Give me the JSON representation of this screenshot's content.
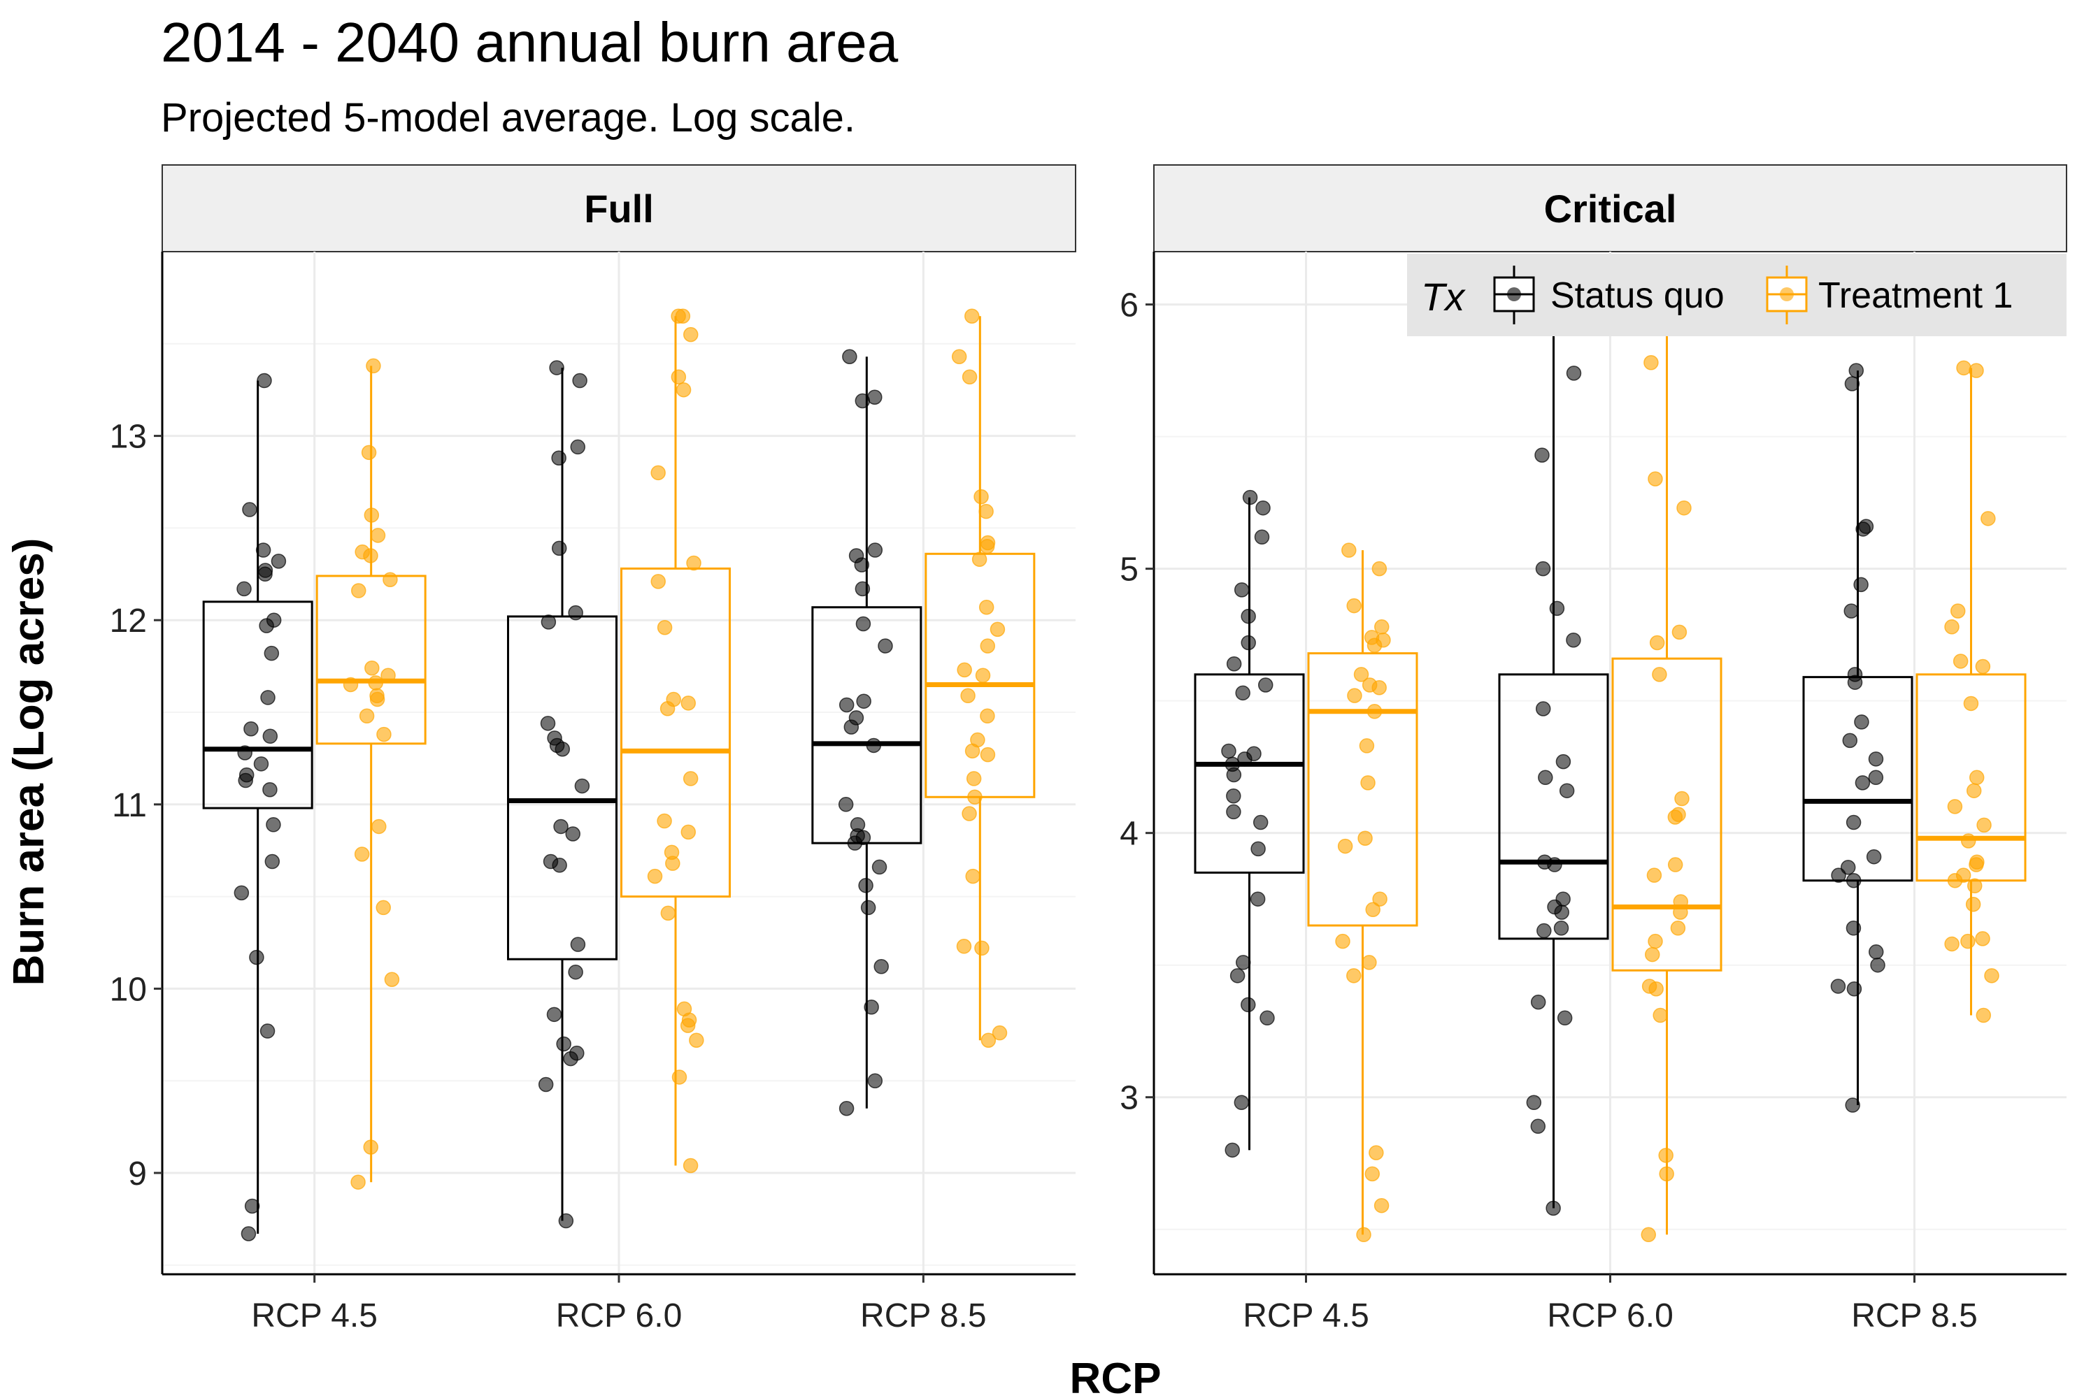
{
  "title": "2014 - 2040 annual burn area",
  "subtitle": "Projected 5-model average. Log scale.",
  "colors": {
    "status_quo": "#000000",
    "treatment_1": "#FFA500",
    "strip_bg": "#EFEFEF",
    "grid": "#EBEBEB",
    "legend_bg": "#E5E5E5"
  },
  "chart_data": {
    "type": "box",
    "xlabel": "RCP",
    "ylabel": "Burn area (Log acres)",
    "categories": [
      "RCP 4.5",
      "RCP 6.0",
      "RCP 8.5"
    ],
    "legend": {
      "title": "Tx",
      "position": "top-right",
      "entries": [
        "Status quo",
        "Treatment 1"
      ]
    },
    "grid": true,
    "facets": [
      {
        "label": "Full",
        "ylim": [
          8.45,
          14.0
        ],
        "yticks": [
          9,
          10,
          11,
          12,
          13
        ],
        "series": [
          {
            "name": "Status quo",
            "boxes": [
              {
                "whisker_low": 8.67,
                "q1": 10.98,
                "median": 11.3,
                "q3": 12.1,
                "whisker_high": 13.3,
                "points": [
                  13.3,
                  12.6,
                  12.38,
                  12.32,
                  12.27,
                  12.25,
                  12.17,
                  12.0,
                  11.97,
                  11.82,
                  11.58,
                  11.41,
                  11.37,
                  11.28,
                  11.22,
                  11.16,
                  11.13,
                  11.08,
                  10.89,
                  10.69,
                  10.52,
                  10.17,
                  9.77,
                  8.82,
                  8.67
                ]
              },
              {
                "whisker_low": 8.74,
                "q1": 10.16,
                "median": 11.02,
                "q3": 12.02,
                "whisker_high": 13.37,
                "points": [
                  13.37,
                  13.3,
                  12.94,
                  12.88,
                  12.39,
                  12.04,
                  11.99,
                  11.44,
                  11.36,
                  11.32,
                  11.3,
                  11.1,
                  10.88,
                  10.84,
                  10.69,
                  10.67,
                  10.24,
                  10.09,
                  9.86,
                  9.7,
                  9.65,
                  9.62,
                  9.48,
                  8.74
                ]
              },
              {
                "whisker_low": 9.35,
                "q1": 10.79,
                "median": 11.33,
                "q3": 12.07,
                "whisker_high": 13.43,
                "points": [
                  13.43,
                  13.21,
                  13.19,
                  12.38,
                  12.35,
                  12.3,
                  12.17,
                  11.98,
                  11.86,
                  11.56,
                  11.54,
                  11.47,
                  11.42,
                  11.32,
                  11.0,
                  10.89,
                  10.83,
                  10.82,
                  10.79,
                  10.66,
                  10.56,
                  10.44,
                  10.12,
                  9.9,
                  9.5,
                  9.35
                ]
              }
            ]
          },
          {
            "name": "Treatment 1",
            "boxes": [
              {
                "whisker_low": 8.95,
                "q1": 11.33,
                "median": 11.67,
                "q3": 12.24,
                "whisker_high": 13.38,
                "points": [
                  13.38,
                  12.91,
                  12.57,
                  12.46,
                  12.37,
                  12.35,
                  12.22,
                  12.16,
                  11.74,
                  11.7,
                  11.66,
                  11.65,
                  11.59,
                  11.57,
                  11.48,
                  11.38,
                  10.88,
                  10.73,
                  10.44,
                  10.05,
                  9.14,
                  8.95
                ]
              },
              {
                "whisker_low": 9.04,
                "q1": 10.5,
                "median": 11.29,
                "q3": 12.28,
                "whisker_high": 13.65,
                "points": [
                  13.65,
                  13.65,
                  13.55,
                  13.32,
                  13.25,
                  12.8,
                  12.31,
                  12.21,
                  11.96,
                  11.57,
                  11.55,
                  11.52,
                  11.14,
                  10.91,
                  10.85,
                  10.74,
                  10.68,
                  10.61,
                  10.41,
                  9.89,
                  9.83,
                  9.8,
                  9.72,
                  9.52,
                  9.04
                ]
              },
              {
                "whisker_low": 9.72,
                "q1": 11.04,
                "median": 11.65,
                "q3": 12.36,
                "whisker_high": 13.65,
                "points": [
                  13.65,
                  13.43,
                  13.32,
                  12.67,
                  12.59,
                  12.42,
                  12.4,
                  12.33,
                  12.07,
                  11.95,
                  11.86,
                  11.73,
                  11.7,
                  11.59,
                  11.48,
                  11.35,
                  11.29,
                  11.27,
                  11.14,
                  11.04,
                  10.95,
                  10.61,
                  10.23,
                  10.22,
                  9.76,
                  9.72
                ]
              }
            ]
          }
        ]
      },
      {
        "label": "Critical",
        "ylim": [
          2.33,
          6.2
        ],
        "yticks": [
          3,
          4,
          5,
          6
        ],
        "series": [
          {
            "name": "Status quo",
            "boxes": [
              {
                "whisker_low": 2.8,
                "q1": 3.85,
                "median": 4.26,
                "q3": 4.6,
                "whisker_high": 5.27,
                "points": [
                  5.27,
                  5.23,
                  5.12,
                  4.92,
                  4.82,
                  4.72,
                  4.64,
                  4.56,
                  4.53,
                  4.31,
                  4.3,
                  4.28,
                  4.26,
                  4.22,
                  4.14,
                  4.08,
                  4.04,
                  3.94,
                  3.75,
                  3.51,
                  3.46,
                  3.35,
                  3.3,
                  2.98,
                  2.8
                ]
              },
              {
                "whisker_low": 2.58,
                "q1": 3.6,
                "median": 3.89,
                "q3": 4.6,
                "whisker_high": 6.05,
                "points": [
                  6.05,
                  5.95,
                  5.74,
                  5.43,
                  5.0,
                  4.85,
                  4.73,
                  4.47,
                  4.27,
                  4.21,
                  4.16,
                  3.89,
                  3.88,
                  3.75,
                  3.72,
                  3.7,
                  3.64,
                  3.63,
                  3.36,
                  3.3,
                  2.98,
                  2.89,
                  2.58
                ]
              },
              {
                "whisker_low": 2.97,
                "q1": 3.82,
                "median": 4.12,
                "q3": 4.59,
                "whisker_high": 5.75,
                "points": [
                  5.75,
                  5.7,
                  5.16,
                  5.15,
                  4.94,
                  4.84,
                  4.6,
                  4.57,
                  4.42,
                  4.35,
                  4.28,
                  4.21,
                  4.19,
                  4.04,
                  3.91,
                  3.87,
                  3.84,
                  3.82,
                  3.64,
                  3.55,
                  3.5,
                  3.42,
                  3.41,
                  2.97
                ]
              }
            ]
          },
          {
            "name": "Treatment 1",
            "boxes": [
              {
                "whisker_low": 2.48,
                "q1": 3.65,
                "median": 4.46,
                "q3": 4.68,
                "whisker_high": 5.07,
                "points": [
                  5.07,
                  5.0,
                  4.86,
                  4.78,
                  4.74,
                  4.73,
                  4.71,
                  4.6,
                  4.56,
                  4.55,
                  4.52,
                  4.46,
                  4.33,
                  4.19,
                  3.98,
                  3.95,
                  3.75,
                  3.71,
                  3.59,
                  3.51,
                  3.46,
                  2.79,
                  2.71,
                  2.59,
                  2.48
                ]
              },
              {
                "whisker_low": 2.48,
                "q1": 3.48,
                "median": 3.72,
                "q3": 4.66,
                "whisker_high": 6.0,
                "points": [
                  6.0,
                  5.95,
                  5.78,
                  5.34,
                  5.23,
                  4.76,
                  4.72,
                  4.6,
                  4.13,
                  4.07,
                  4.06,
                  3.88,
                  3.84,
                  3.74,
                  3.7,
                  3.64,
                  3.59,
                  3.54,
                  3.42,
                  3.41,
                  3.31,
                  2.78,
                  2.71,
                  2.48
                ]
              },
              {
                "whisker_low": 3.31,
                "q1": 3.82,
                "median": 3.98,
                "q3": 4.6,
                "whisker_high": 5.76,
                "points": [
                  5.76,
                  5.75,
                  5.19,
                  4.84,
                  4.78,
                  4.65,
                  4.63,
                  4.49,
                  4.21,
                  4.16,
                  4.1,
                  4.03,
                  3.97,
                  3.89,
                  3.88,
                  3.84,
                  3.82,
                  3.8,
                  3.73,
                  3.6,
                  3.59,
                  3.58,
                  3.46,
                  3.31
                ]
              }
            ]
          }
        ]
      }
    ]
  }
}
